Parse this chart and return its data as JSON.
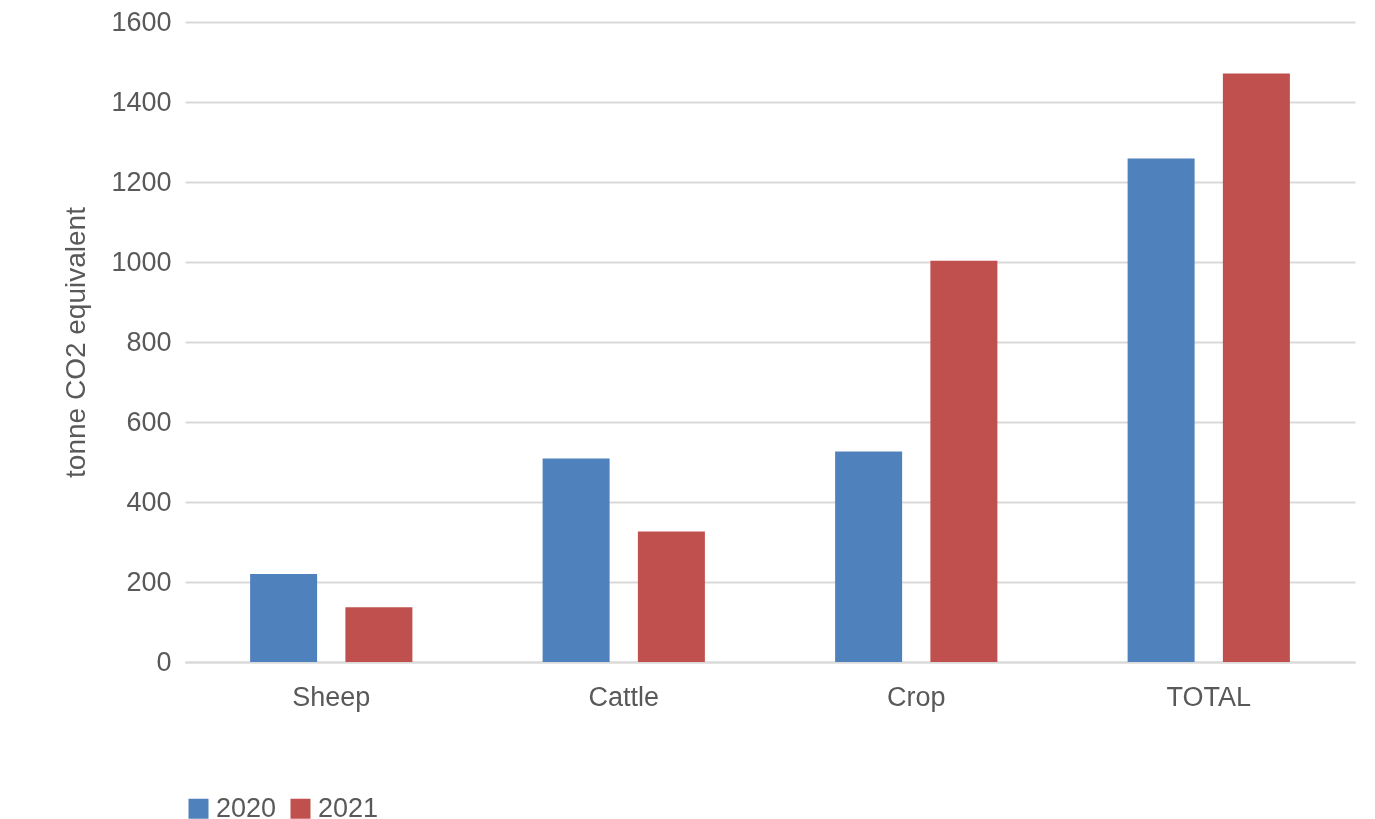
{
  "chart_data": {
    "type": "bar",
    "ylabel": "tonne CO2 equivalent",
    "categories": [
      "Sheep",
      "Cattle",
      "Crop",
      "TOTAL"
    ],
    "series": [
      {
        "name": "2020",
        "color": "#4f81bd",
        "values": [
          220,
          509,
          526,
          1259
        ]
      },
      {
        "name": "2021",
        "color": "#c0504d",
        "values": [
          137,
          326,
          1003,
          1471
        ]
      }
    ],
    "ylim": [
      0,
      1600
    ],
    "yticks": [
      0,
      200,
      400,
      600,
      800,
      1000,
      1200,
      1400,
      1600
    ],
    "grid": "y",
    "legend": "bottom"
  }
}
